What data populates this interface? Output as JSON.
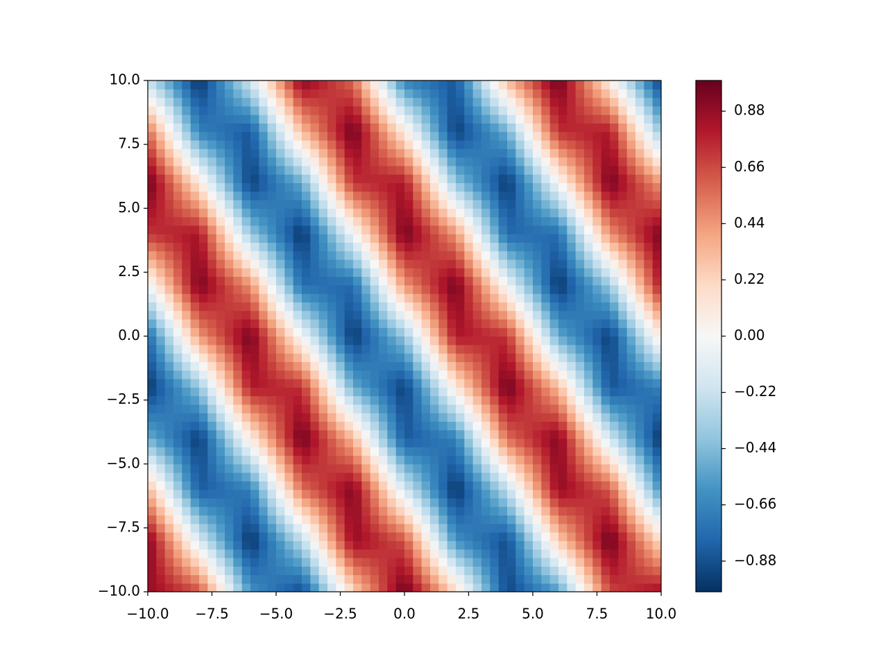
{
  "chart_data": {
    "type": "contourf",
    "x": [
      -10,
      -8,
      -6,
      -4,
      -2,
      0,
      2,
      4,
      6,
      8,
      10
    ],
    "y": [
      -10,
      -8,
      -6,
      -4,
      -2,
      0,
      2,
      4,
      6,
      8,
      10
    ],
    "z": [
      [
        0.88,
        0.66,
        -0.6,
        -0.91,
        0.22,
        1.0,
        0.2,
        -0.92,
        -0.58,
        0.67,
        0.86
      ],
      [
        0.94,
        -0.14,
        -1.0,
        -0.27,
        0.88,
        0.64,
        -0.61,
        -0.9,
        0.24,
        1.0,
        0.18
      ],
      [
        0.35,
        -0.84,
        -0.7,
        0.55,
        0.93,
        -0.16,
        -1.0,
        -0.26,
        0.89,
        0.63,
        -0.63
      ],
      [
        -0.48,
        -0.96,
        0.08,
        0.99,
        0.33,
        -0.85,
        -0.69,
        0.56,
        0.93,
        -0.18,
        -1.0
      ],
      [
        -0.98,
        -0.4,
        0.81,
        0.74,
        -0.5,
        -0.95,
        0.1,
        0.99,
        0.32,
        -0.87,
        -0.68
      ],
      [
        -0.79,
        0.43,
        0.97,
        -0.02,
        -0.98,
        -0.39,
        0.82,
        0.73,
        -0.51,
        -0.95,
        0.12
      ],
      [
        -0.06,
        0.96,
        0.46,
        -0.77,
        -0.78,
        0.44,
        0.97,
        -0.04,
        -0.99,
        -0.37,
        0.83
      ],
      [
        0.72,
        0.83,
        -0.37,
        -0.99,
        -0.04,
        0.97,
        0.45,
        -0.78,
        -0.77,
        0.46,
        0.96
      ],
      [
        1.0,
        0.12,
        -0.95,
        -0.51,
        0.73,
        0.82,
        -0.39,
        -0.98,
        -0.02,
        0.97,
        0.43
      ],
      [
        0.58,
        -0.68,
        -0.86,
        0.31,
        0.99,
        0.1,
        -0.95,
        -0.5,
        0.74,
        0.81,
        -0.4
      ],
      [
        -0.24,
        -1.0,
        -0.18,
        0.92,
        0.57,
        -0.69,
        -0.85,
        0.33,
        0.99,
        0.08,
        -0.96
      ]
    ],
    "xlim": [
      -10,
      10
    ],
    "ylim": [
      -10,
      10
    ],
    "xticks": [
      {
        "value": -10,
        "label": "−10.0"
      },
      {
        "value": -7.5,
        "label": "−7.5"
      },
      {
        "value": -5,
        "label": "−5.0"
      },
      {
        "value": -2.5,
        "label": "−2.5"
      },
      {
        "value": 0,
        "label": "0.0"
      },
      {
        "value": 2.5,
        "label": "2.5"
      },
      {
        "value": 5,
        "label": "5.0"
      },
      {
        "value": 7.5,
        "label": "7.5"
      },
      {
        "value": 10,
        "label": "10.0"
      }
    ],
    "yticks": [
      {
        "value": -10,
        "label": "−10.0"
      },
      {
        "value": -7.5,
        "label": "−7.5"
      },
      {
        "value": -5,
        "label": "−5.0"
      },
      {
        "value": -2.5,
        "label": "−2.5"
      },
      {
        "value": 0,
        "label": "0.0"
      },
      {
        "value": 2.5,
        "label": "2.5"
      },
      {
        "value": 5,
        "label": "5.0"
      },
      {
        "value": 7.5,
        "label": "7.5"
      },
      {
        "value": 10,
        "label": "10.0"
      }
    ],
    "clim": [
      -1,
      1
    ],
    "cticks": [
      {
        "value": -0.88,
        "label": "−0.88"
      },
      {
        "value": -0.66,
        "label": "−0.66"
      },
      {
        "value": -0.44,
        "label": "−0.44"
      },
      {
        "value": -0.22,
        "label": "−0.22"
      },
      {
        "value": 0,
        "label": "0.00"
      },
      0.22,
      0.44,
      0.66,
      0.88
    ],
    "colormap": [
      "#053061",
      "#2166ac",
      "#4393c3",
      "#92c5de",
      "#d1e5f0",
      "#f7f7f7",
      "#fddbc7",
      "#f4a582",
      "#d6604d",
      "#b2182b",
      "#67001f"
    ]
  }
}
